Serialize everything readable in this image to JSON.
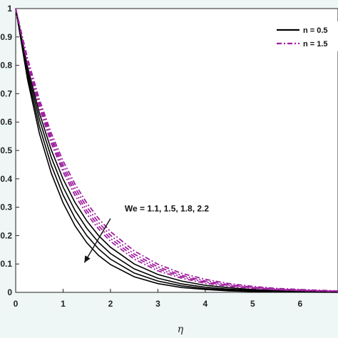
{
  "chart_data": {
    "type": "line",
    "title": "",
    "xlabel": "η",
    "ylabel": "",
    "xlim": [
      0,
      6.8
    ],
    "ylim": [
      0,
      1
    ],
    "x_ticks": [
      "0",
      "1",
      "2",
      "3",
      "4",
      "5",
      "6"
    ],
    "y_ticks": [
      "0",
      "0.1",
      "0.2",
      "0.3",
      "0.4",
      "0.5",
      "0.6",
      "0.7",
      "0.8",
      "0.9",
      "1"
    ],
    "x": [
      0,
      0.25,
      0.5,
      0.75,
      1,
      1.25,
      1.5,
      1.75,
      2,
      2.5,
      3,
      3.5,
      4,
      4.5,
      5,
      5.5,
      6,
      6.8
    ],
    "series": [
      {
        "name": "n = 0.5",
        "group": "n05",
        "values": [
          1,
          0.75,
          0.56,
          0.42,
          0.315,
          0.235,
          0.175,
          0.13,
          0.098,
          0.055,
          0.031,
          0.017,
          0.01,
          0.005,
          0.003,
          0.002,
          0.001,
          0.0
        ]
      },
      {
        "name": "",
        "group": "n05",
        "values": [
          1,
          0.765,
          0.585,
          0.448,
          0.343,
          0.262,
          0.2,
          0.153,
          0.117,
          0.068,
          0.04,
          0.023,
          0.013,
          0.008,
          0.005,
          0.003,
          0.002,
          0.001
        ]
      },
      {
        "name": "",
        "group": "n05",
        "values": [
          1,
          0.78,
          0.61,
          0.476,
          0.371,
          0.289,
          0.226,
          0.176,
          0.137,
          0.083,
          0.05,
          0.03,
          0.018,
          0.011,
          0.007,
          0.004,
          0.002,
          0.001
        ]
      },
      {
        "name": "",
        "group": "n05",
        "values": [
          1,
          0.795,
          0.632,
          0.502,
          0.399,
          0.317,
          0.252,
          0.2,
          0.159,
          0.1,
          0.063,
          0.04,
          0.025,
          0.016,
          0.01,
          0.006,
          0.004,
          0.002
        ]
      },
      {
        "name": "n = 1.5",
        "group": "n15",
        "values": [
          1,
          0.805,
          0.65,
          0.525,
          0.424,
          0.342,
          0.276,
          0.223,
          0.18,
          0.117,
          0.076,
          0.05,
          0.032,
          0.021,
          0.014,
          0.009,
          0.006,
          0.003
        ]
      },
      {
        "name": "",
        "group": "n15",
        "values": [
          1,
          0.812,
          0.661,
          0.537,
          0.436,
          0.355,
          0.288,
          0.234,
          0.19,
          0.126,
          0.083,
          0.055,
          0.036,
          0.024,
          0.016,
          0.01,
          0.007,
          0.004
        ]
      },
      {
        "name": "",
        "group": "n15",
        "values": [
          1,
          0.818,
          0.67,
          0.548,
          0.449,
          0.368,
          0.301,
          0.246,
          0.201,
          0.135,
          0.09,
          0.06,
          0.04,
          0.027,
          0.018,
          0.012,
          0.008,
          0.004
        ]
      },
      {
        "name": "",
        "group": "n15",
        "values": [
          1,
          0.825,
          0.68,
          0.561,
          0.463,
          0.382,
          0.315,
          0.26,
          0.214,
          0.146,
          0.099,
          0.067,
          0.046,
          0.031,
          0.021,
          0.014,
          0.01,
          0.005
        ]
      }
    ],
    "legend": [
      {
        "label": "n = 0.5",
        "color": "#000000",
        "style": "solid"
      },
      {
        "label": "n = 1.5",
        "color": "#a020a0",
        "style": "dashdot"
      }
    ],
    "legend_position": "top-right",
    "annotation": {
      "text": "We = 1.1, 1.5, 1.8, 2.2",
      "arrow_from": [
        2.0,
        0.26
      ],
      "arrow_to": [
        1.45,
        0.105
      ],
      "text_at": [
        2.3,
        0.285
      ]
    },
    "grid": false,
    "colors": {
      "n05": "#000000",
      "n15": "#a020a0",
      "background": "#eef7f6",
      "axis": "#222222"
    }
  }
}
